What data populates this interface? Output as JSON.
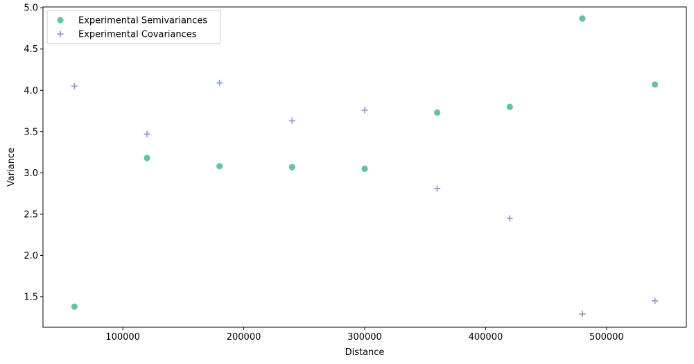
{
  "chart_data": {
    "type": "scatter",
    "xlabel": "Distance",
    "ylabel": "Variance",
    "xlim": [
      34000,
      566000
    ],
    "ylim": [
      1.13,
      5.01
    ],
    "xticks": [
      100000,
      200000,
      300000,
      400000,
      500000
    ],
    "yticks": [
      1.5,
      2.0,
      2.5,
      3.0,
      3.5,
      4.0,
      4.5,
      5.0
    ],
    "xtick_labels": [
      "100000",
      "200000",
      "300000",
      "400000",
      "500000"
    ],
    "ytick_labels": [
      "1.5",
      "2.0",
      "2.5",
      "3.0",
      "3.5",
      "4.0",
      "4.5",
      "5.0"
    ],
    "grid": false,
    "legend_position": "top-left",
    "series": [
      {
        "name": "Experimental Semivariances",
        "marker": "circle",
        "color": "#66c2a5",
        "x": [
          60000,
          120000,
          180000,
          240000,
          300000,
          360000,
          420000,
          480000,
          540000
        ],
        "y": [
          1.38,
          3.18,
          3.08,
          3.07,
          3.05,
          3.73,
          3.8,
          4.87,
          4.07
        ]
      },
      {
        "name": "Experimental Covariances",
        "marker": "plus",
        "color": "#8da0cb",
        "x": [
          60000,
          120000,
          180000,
          240000,
          300000,
          360000,
          420000,
          480000,
          540000
        ],
        "y": [
          4.05,
          3.47,
          4.09,
          3.63,
          3.76,
          2.81,
          2.45,
          1.29,
          1.45
        ]
      }
    ]
  }
}
